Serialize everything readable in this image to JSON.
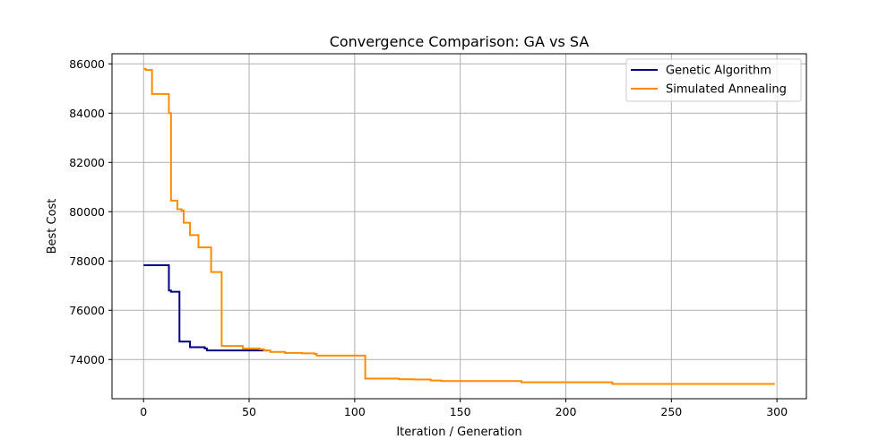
{
  "chart_data": {
    "type": "line",
    "title": "Convergence Comparison: GA vs SA",
    "xlabel": "Iteration / Generation",
    "ylabel": "Best Cost",
    "xlim": [
      -14.95,
      313.95
    ],
    "ylim": [
      72410,
      86410
    ],
    "xticks": [
      0,
      50,
      100,
      150,
      200,
      250,
      300
    ],
    "yticks": [
      74000,
      76000,
      78000,
      80000,
      82000,
      84000,
      86000
    ],
    "grid": true,
    "legend_position": "top-right",
    "series": [
      {
        "name": "Genetic Algorithm",
        "color": "#000080",
        "step": true,
        "points": [
          [
            0,
            77830
          ],
          [
            11,
            77830
          ],
          [
            12,
            76800
          ],
          [
            13,
            76750
          ],
          [
            16,
            76750
          ],
          [
            17,
            74730
          ],
          [
            21,
            74730
          ],
          [
            22,
            74500
          ],
          [
            29,
            74450
          ],
          [
            30,
            74370
          ],
          [
            59,
            74370
          ]
        ]
      },
      {
        "name": "Simulated Annealing",
        "color": "#ff8c00",
        "step": true,
        "points": [
          [
            0,
            85800
          ],
          [
            1,
            85750
          ],
          [
            3,
            85750
          ],
          [
            4,
            84780
          ],
          [
            11,
            84780
          ],
          [
            12,
            84000
          ],
          [
            13,
            80450
          ],
          [
            15,
            80450
          ],
          [
            16,
            80100
          ],
          [
            18,
            80050
          ],
          [
            19,
            79550
          ],
          [
            21,
            79550
          ],
          [
            22,
            79050
          ],
          [
            25,
            79050
          ],
          [
            26,
            78550
          ],
          [
            31,
            78550
          ],
          [
            32,
            77550
          ],
          [
            36,
            77550
          ],
          [
            37,
            74550
          ],
          [
            46,
            74550
          ],
          [
            47,
            74450
          ],
          [
            55,
            74420
          ],
          [
            57,
            74370
          ],
          [
            59,
            74370
          ],
          [
            60,
            74310
          ],
          [
            66,
            74310
          ],
          [
            67,
            74270
          ],
          [
            75,
            74250
          ],
          [
            81,
            74230
          ],
          [
            82,
            74160
          ],
          [
            104,
            74160
          ],
          [
            105,
            73230
          ],
          [
            120,
            73230
          ],
          [
            121,
            73200
          ],
          [
            127,
            73200
          ],
          [
            128,
            73190
          ],
          [
            135,
            73190
          ],
          [
            136,
            73150
          ],
          [
            140,
            73150
          ],
          [
            141,
            73130
          ],
          [
            178,
            73130
          ],
          [
            179,
            73080
          ],
          [
            221,
            73080
          ],
          [
            222,
            73010
          ],
          [
            299,
            73010
          ]
        ]
      }
    ]
  }
}
